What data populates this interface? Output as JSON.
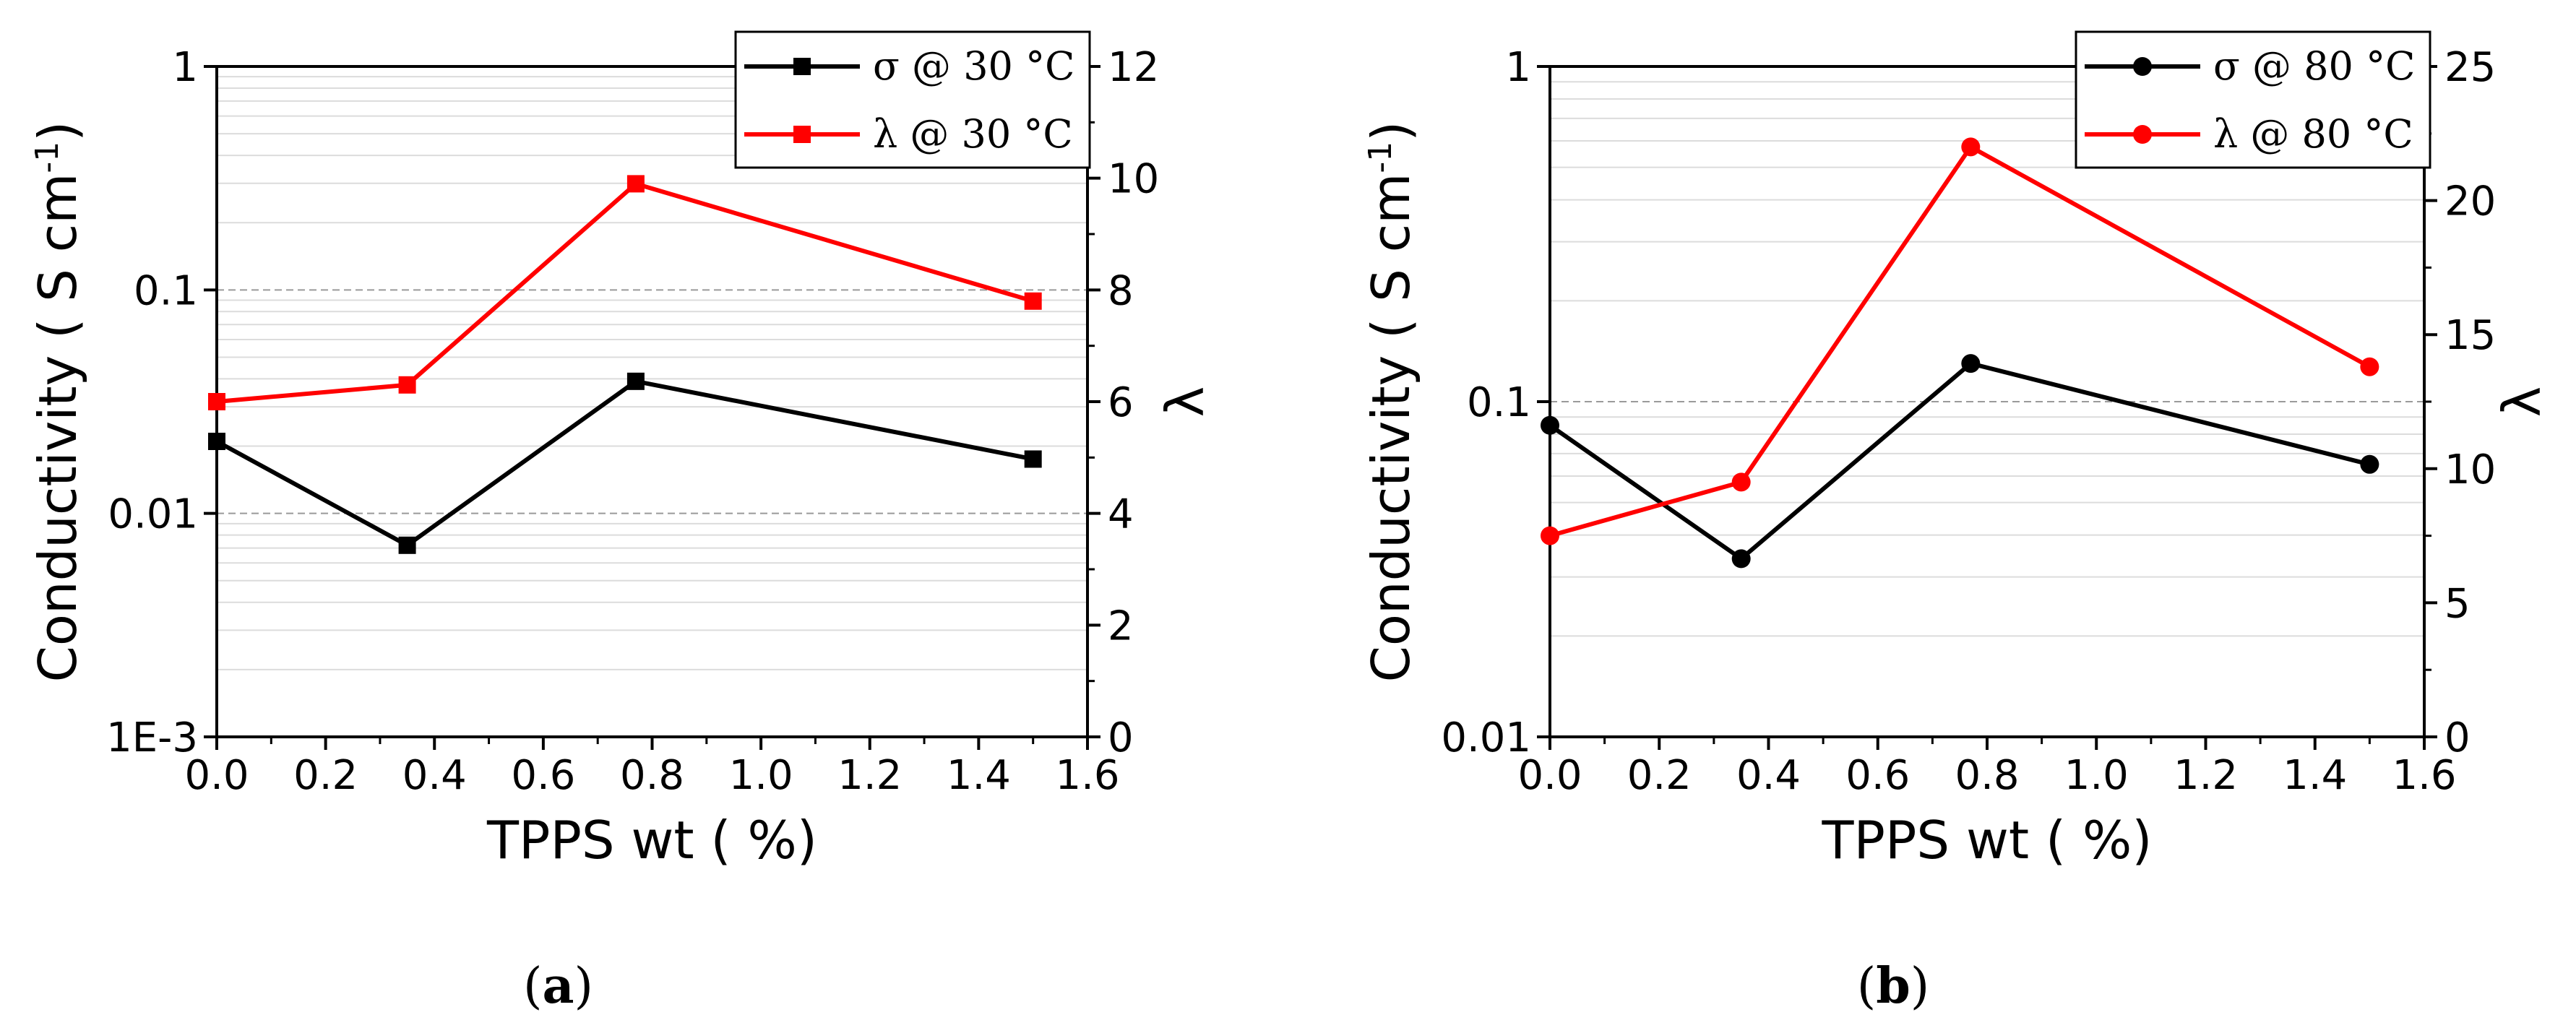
{
  "chart_data": [
    {
      "type": "line",
      "panel_label": "a",
      "xlabel": "TPPS wt (   %)",
      "ylabel_left": "Conductivity (   S cm",
      "ylabel_left_sup": "-1",
      "ylabel_right": "λ",
      "x": [
        0,
        0.35,
        0.77,
        1.5
      ],
      "xlim": [
        0,
        1.6
      ],
      "x_ticks": [
        "0.0",
        "0.2",
        "0.4",
        "0.6",
        "0.8",
        "1.0",
        "1.2",
        "1.4",
        "1.6"
      ],
      "y_left_scale": "log",
      "ylim_left": [
        0.001,
        1
      ],
      "y_left_ticks": [
        "1E-3",
        "0.01",
        "0.1",
        "1"
      ],
      "ylim_right": [
        0,
        12
      ],
      "y_right_ticks": [
        "0",
        "2",
        "4",
        "6",
        "8",
        "10",
        "12"
      ],
      "grid": true,
      "legend_position": "top-right",
      "series": [
        {
          "name": "σ @ 30 °C",
          "axis": "left",
          "marker": "square",
          "color": "#000000",
          "values": [
            0.021,
            0.0072,
            0.039,
            0.0175
          ]
        },
        {
          "name": "λ @ 30 °C",
          "axis": "right",
          "marker": "square",
          "color": "#ff0000",
          "values": [
            6.0,
            6.3,
            9.9,
            7.8
          ]
        }
      ]
    },
    {
      "type": "line",
      "panel_label": "b",
      "xlabel": "TPPS wt (   %)",
      "ylabel_left": "Conductivity (   S cm",
      "ylabel_left_sup": "-1",
      "ylabel_right": "λ",
      "x": [
        0,
        0.35,
        0.77,
        1.5
      ],
      "xlim": [
        0,
        1.6
      ],
      "x_ticks": [
        "0.0",
        "0.2",
        "0.4",
        "0.6",
        "0.8",
        "1.0",
        "1.2",
        "1.4",
        "1.6"
      ],
      "y_left_scale": "log",
      "ylim_left": [
        0.01,
        1
      ],
      "y_left_ticks": [
        "0.01",
        "0.1",
        "1"
      ],
      "ylim_right": [
        0,
        25
      ],
      "y_right_ticks": [
        "0",
        "5",
        "10",
        "15",
        "20",
        "25"
      ],
      "grid": true,
      "legend_position": "top-right",
      "series": [
        {
          "name": "σ @ 80 °C",
          "axis": "left",
          "marker": "circle",
          "color": "#000000",
          "values": [
            0.085,
            0.034,
            0.13,
            0.065
          ]
        },
        {
          "name": "λ @ 80 °C",
          "axis": "right",
          "marker": "circle",
          "color": "#ff0000",
          "values": [
            7.5,
            9.5,
            22.0,
            13.8
          ]
        }
      ]
    }
  ]
}
